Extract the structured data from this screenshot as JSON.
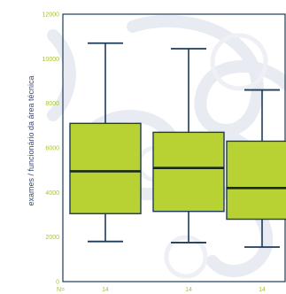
{
  "chart_data": {
    "type": "boxplot",
    "ylabel": "exames / funcionário da área técnica",
    "ylim": [
      0,
      12000
    ],
    "yticks": [
      0,
      2000,
      4000,
      6000,
      8000,
      10000,
      12000
    ],
    "n_prefix": "N=",
    "boxes": [
      {
        "n": "14",
        "whisker_low": 1800,
        "q1": 3050,
        "median": 4950,
        "q3": 7100,
        "whisker_high": 10700
      },
      {
        "n": "14",
        "whisker_low": 1750,
        "q1": 3150,
        "median": 5100,
        "q3": 6700,
        "whisker_high": 10450
      },
      {
        "n": "14",
        "whisker_low": 1550,
        "q1": 2800,
        "median": 4200,
        "q3": 6300,
        "whisker_high": 8600
      }
    ],
    "colors": {
      "box_fill": "#b9d233",
      "box_stroke": "#1d3b5a",
      "median": "#1a2a1a",
      "frame": "#1d3b5a",
      "tick_text": "#a6c23a",
      "axis_title": "#3a4a80",
      "background_pattern": "#e6e9f0"
    }
  }
}
